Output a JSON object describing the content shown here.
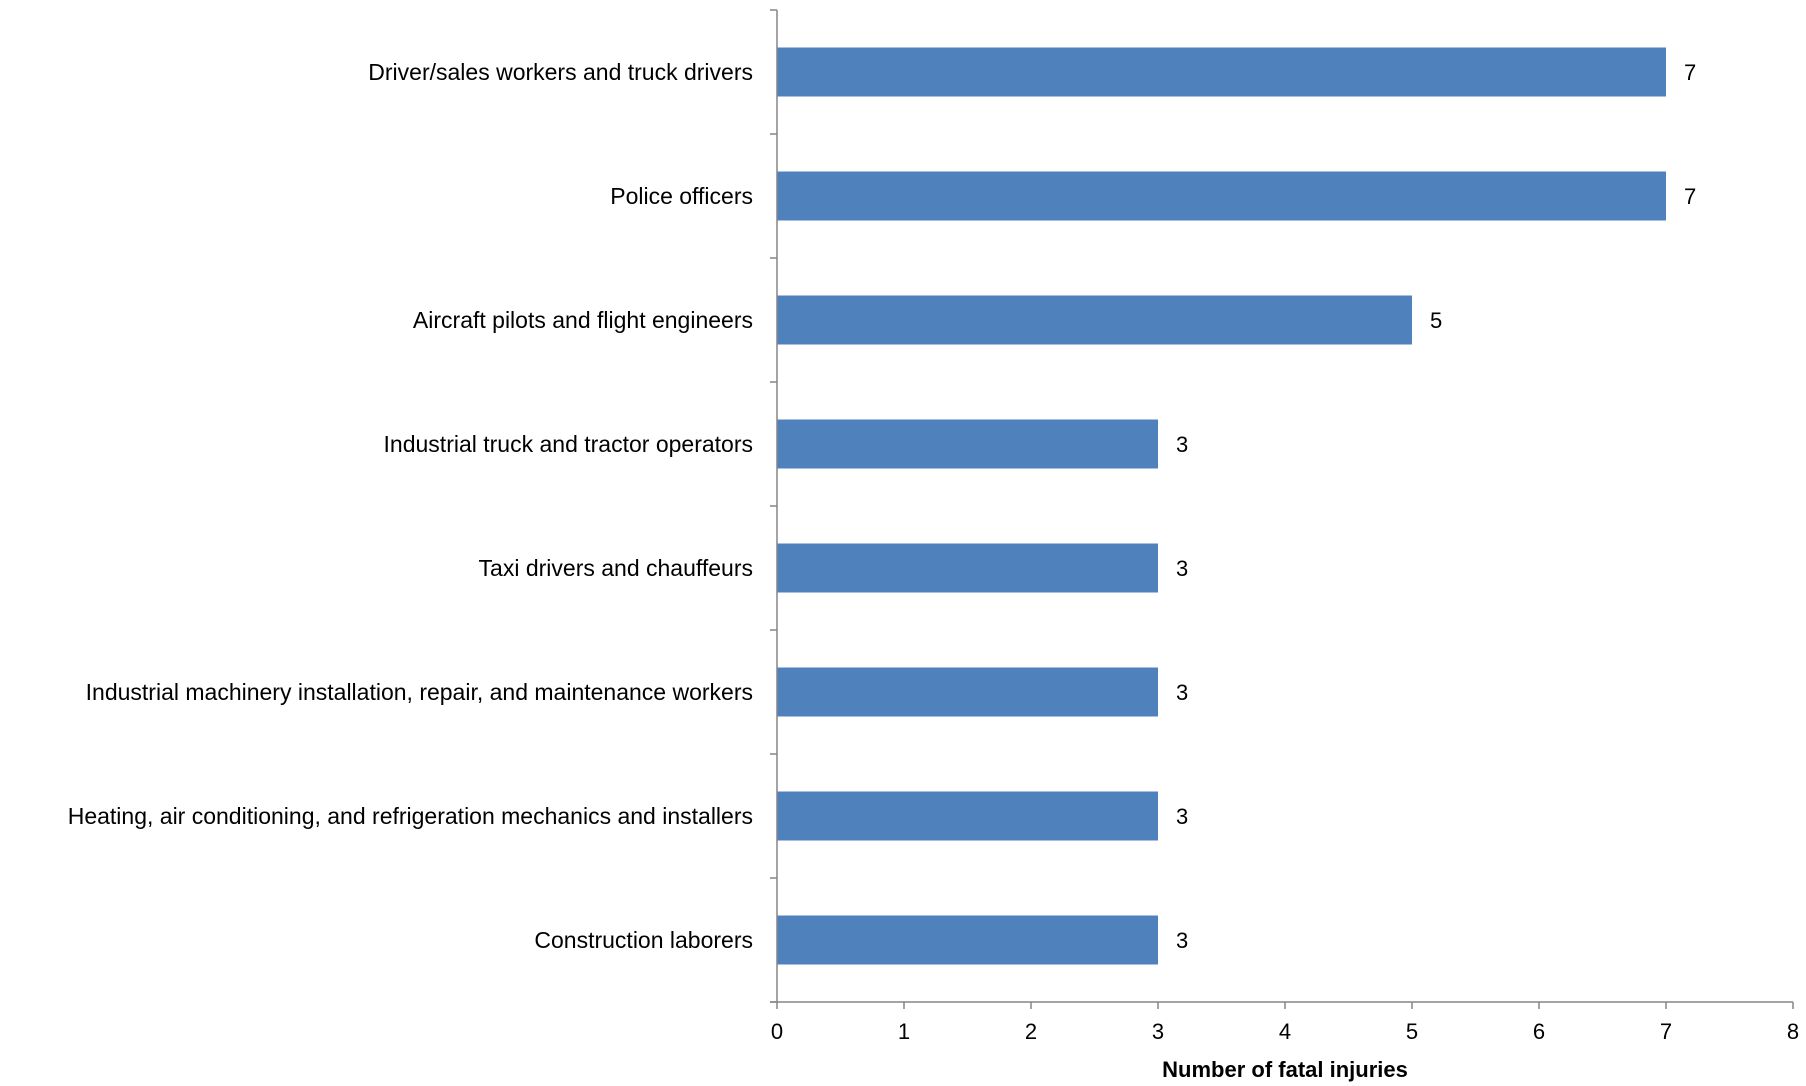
{
  "chart_data": {
    "type": "bar",
    "orientation": "horizontal",
    "categories": [
      "Driver/sales workers and truck drivers",
      "Police officers",
      "Aircraft pilots and flight engineers",
      "Industrial truck and tractor operators",
      "Taxi drivers and chauffeurs",
      "Industrial machinery installation, repair, and maintenance workers",
      "Heating, air conditioning, and refrigeration mechanics and installers",
      "Construction laborers"
    ],
    "values": [
      7,
      7,
      5,
      3,
      3,
      3,
      3,
      3
    ],
    "data_labels": [
      "7",
      "7",
      "5",
      "3",
      "3",
      "3",
      "3",
      "3"
    ],
    "xlabel": "Number of fatal injuries",
    "ylabel": "",
    "title": "",
    "xlim": [
      0,
      8
    ],
    "xticks": [
      "0",
      "1",
      "2",
      "3",
      "4",
      "5",
      "6",
      "7",
      "8"
    ],
    "grid": false,
    "legend": "none",
    "bar_color": "#4f81bd",
    "axis_color": "#868686"
  }
}
